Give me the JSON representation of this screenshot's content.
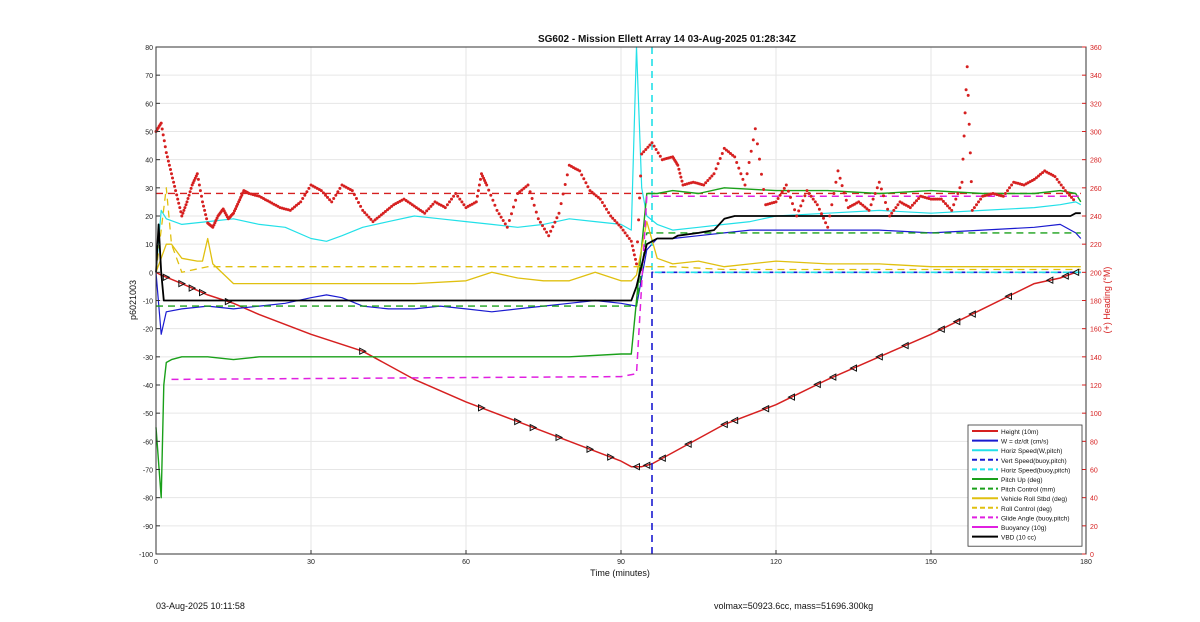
{
  "footer": {
    "timestamp": "03-Aug-2025 10:11:58",
    "info": "volmax=50923.6cc, mass=51696.300kg"
  },
  "chart_data": {
    "type": "line",
    "title": "SG602 - Mission Ellett Array 14 03-Aug-2025 01:28:34Z",
    "xlabel": "Time (minutes)",
    "ylabel": "p6021003",
    "ylabel_right": "(+) Heading (°M)",
    "xlim": [
      0,
      180
    ],
    "ylim": [
      -100,
      80
    ],
    "ylim_right": [
      0,
      360
    ],
    "xticks": [
      0,
      30,
      60,
      90,
      120,
      150,
      180
    ],
    "yticks": [
      -100,
      -90,
      -80,
      -70,
      -60,
      -50,
      -40,
      -30,
      -20,
      -10,
      0,
      10,
      20,
      30,
      40,
      50,
      60,
      70,
      80
    ],
    "yticks_right": [
      0,
      20,
      40,
      60,
      80,
      100,
      120,
      140,
      160,
      180,
      200,
      220,
      240,
      260,
      280,
      300,
      320,
      340,
      360
    ],
    "grid": true,
    "legend_position": "bottom-right",
    "legend": [
      {
        "label": "Height (10m)",
        "color": "#d62020",
        "dash": "solid"
      },
      {
        "label": "W = dz/dt (cm/s)",
        "color": "#1a1ad0",
        "dash": "solid"
      },
      {
        "label": "Horiz Speed(W,pitch)",
        "color": "#22e0e8",
        "dash": "solid"
      },
      {
        "label": "Vert Speed(buoy,pitch)",
        "color": "#1a1ad0",
        "dash": "dashed"
      },
      {
        "label": "Horiz Speed(buoy,pitch)",
        "color": "#22e0e8",
        "dash": "dashed"
      },
      {
        "label": "Pitch Up (deg)",
        "color": "#1aa01a",
        "dash": "solid"
      },
      {
        "label": "Pitch Control (mm)",
        "color": "#1aa01a",
        "dash": "dashed"
      },
      {
        "label": "Vehicle Roll Stbd (deg)",
        "color": "#e0c010",
        "dash": "solid"
      },
      {
        "label": "Roll Control (deg)",
        "color": "#e0c010",
        "dash": "dashed"
      },
      {
        "label": "Glide Angle (buoy,pitch)",
        "color": "#e020e0",
        "dash": "dashed"
      },
      {
        "label": "Buoyancy (10g)",
        "color": "#e020e0",
        "dash": "solid"
      },
      {
        "label": "VBD (10 cc)",
        "color": "#000000",
        "dash": "solid"
      }
    ],
    "series": [
      {
        "key": "height",
        "color": "#d62020",
        "dash": "solid",
        "width": 1.5,
        "x": [
          0,
          1,
          5,
          10,
          15,
          20,
          30,
          40,
          50,
          60,
          70,
          80,
          90,
          92,
          94,
          96,
          100,
          110,
          120,
          130,
          140,
          150,
          160,
          170,
          175,
          178,
          179
        ],
        "y": [
          0,
          -1,
          -4,
          -8,
          -11,
          -15,
          -22,
          -28,
          -38,
          -46,
          -53,
          -60,
          -67,
          -69,
          -69,
          -68,
          -64,
          -54,
          -47,
          -38,
          -30,
          -22,
          -13,
          -4,
          -2,
          0,
          0
        ]
      },
      {
        "key": "w",
        "color": "#1a1ad0",
        "dash": "solid",
        "width": 1.2,
        "x": [
          0,
          1,
          2,
          5,
          10,
          15,
          20,
          25,
          30,
          33,
          36,
          40,
          45,
          50,
          55,
          60,
          65,
          70,
          75,
          80,
          85,
          90,
          93,
          95,
          97,
          100,
          105,
          110,
          115,
          120,
          130,
          140,
          150,
          160,
          170,
          175,
          178,
          179
        ],
        "y": [
          0,
          -22,
          -14,
          -13,
          -12,
          -13,
          -12,
          -11,
          -9,
          -8,
          -9,
          -12,
          -13,
          -13,
          -12,
          -13,
          -14,
          -13,
          -12,
          -11,
          -10,
          -11,
          -12,
          8,
          12,
          12,
          13,
          14,
          15,
          15,
          15,
          15,
          14,
          15,
          16,
          17,
          14,
          12
        ]
      },
      {
        "key": "horiz_speed_w",
        "color": "#22e0e8",
        "dash": "solid",
        "width": 1.2,
        "x": [
          0,
          1,
          2,
          5,
          10,
          15,
          20,
          25,
          30,
          33,
          36,
          40,
          45,
          50,
          55,
          60,
          65,
          70,
          75,
          80,
          85,
          90,
          92,
          93,
          94,
          95,
          97,
          100,
          105,
          110,
          115,
          120,
          130,
          140,
          150,
          160,
          170,
          175,
          178,
          179
        ],
        "y": [
          0,
          22,
          19,
          17,
          18,
          19,
          17,
          16,
          12,
          11,
          13,
          16,
          18,
          20,
          19,
          18,
          17,
          16,
          17,
          19,
          18,
          17,
          15,
          80,
          30,
          20,
          17,
          15,
          16,
          17,
          18,
          20,
          21,
          22,
          21,
          22,
          23,
          24,
          25,
          24
        ]
      },
      {
        "key": "vert_speed_buoy",
        "color": "#1a1ad0",
        "dash": "dashed",
        "width": 1.6,
        "x": [
          96,
          96,
          97,
          179
        ],
        "y": [
          -100,
          0,
          0,
          0
        ]
      },
      {
        "key": "horiz_speed_buoy",
        "color": "#22e0e8",
        "dash": "dashed",
        "width": 1.6,
        "x": [
          96,
          96,
          97,
          179
        ],
        "y": [
          80,
          0,
          0,
          0
        ]
      },
      {
        "key": "pitch_up",
        "color": "#1aa01a",
        "dash": "solid",
        "width": 1.4,
        "x": [
          0,
          1,
          1.5,
          2,
          3,
          5,
          10,
          15,
          20,
          30,
          40,
          50,
          60,
          70,
          80,
          90,
          92,
          93,
          95,
          97,
          100,
          105,
          110,
          120,
          130,
          140,
          150,
          160,
          170,
          175,
          178,
          179
        ],
        "y": [
          -55,
          -80,
          -40,
          -32,
          -31,
          -30,
          -30,
          -31,
          -30,
          -30,
          -30,
          -30,
          -30,
          -30,
          -30,
          -29,
          -29,
          -10,
          28,
          28,
          29,
          28,
          30,
          29,
          29,
          28,
          29,
          28,
          28,
          29,
          28,
          25
        ]
      },
      {
        "key": "pitch_control",
        "color": "#1aa01a",
        "dash": "dashed",
        "width": 1.4,
        "x": [
          0,
          3,
          93,
          95,
          179
        ],
        "y": [
          -12,
          -12,
          -12,
          14,
          14
        ]
      },
      {
        "key": "vehicle_roll",
        "color": "#e0c010",
        "dash": "solid",
        "width": 1.3,
        "x": [
          0,
          2,
          3,
          5,
          8,
          9,
          10,
          11,
          15,
          20,
          30,
          40,
          50,
          60,
          65,
          70,
          75,
          80,
          85,
          90,
          92,
          93,
          95,
          97,
          100,
          105,
          110,
          115,
          120,
          130,
          140,
          150,
          160,
          170,
          175,
          178,
          179
        ],
        "y": [
          0,
          10,
          10,
          5,
          4,
          4,
          12,
          3,
          -4,
          -4,
          -4,
          -4,
          -4,
          -3,
          0,
          -2,
          -3,
          -3,
          0,
          -3,
          -3,
          -1,
          18,
          5,
          3,
          4,
          2,
          3,
          4,
          3,
          3,
          2,
          2,
          2,
          2,
          2,
          2
        ]
      },
      {
        "key": "roll_control",
        "color": "#e0c010",
        "dash": "dashed",
        "width": 1.3,
        "x": [
          0,
          2,
          3,
          5,
          10,
          15,
          20,
          30,
          40,
          50,
          60,
          70,
          80,
          90,
          93,
          95,
          100,
          110,
          120,
          130,
          140,
          150,
          160,
          170,
          179
        ],
        "y": [
          0,
          30,
          10,
          0,
          2,
          2,
          2,
          2,
          2,
          2,
          2,
          2,
          2,
          2,
          2,
          2,
          2,
          1,
          1,
          1,
          1,
          1,
          1,
          1,
          1
        ]
      },
      {
        "key": "glide_angle",
        "color": "#e020e0",
        "dash": "dashed",
        "width": 1.5,
        "x": [
          3,
          90,
          93,
          95,
          100,
          110,
          120,
          130,
          140,
          150,
          160,
          170,
          179
        ],
        "y": [
          -38,
          -37,
          -36,
          27,
          27,
          27,
          27,
          27,
          27,
          27,
          27,
          27,
          27
        ]
      },
      {
        "key": "vbd",
        "color": "#000000",
        "dash": "solid",
        "width": 1.8,
        "x": [
          0,
          0.5,
          1,
          1.5,
          92,
          93,
          95,
          97,
          100,
          101,
          105,
          108,
          110,
          112,
          120,
          130,
          140,
          150,
          160,
          170,
          177,
          178,
          179
        ],
        "y": [
          0,
          17,
          0,
          -10,
          -10,
          -5,
          10,
          12,
          12,
          13,
          14,
          15,
          19,
          20,
          20,
          20,
          20,
          20,
          20,
          20,
          20,
          21,
          21
        ]
      }
    ],
    "reference_lines": [
      {
        "key": "heading_target",
        "axis": "right",
        "y": 256,
        "x": [
          0,
          179
        ],
        "color": "#d62020",
        "dash": "dashed",
        "width": 1.4
      }
    ],
    "heading": {
      "axis": "right",
      "color": "#d62020",
      "x": [
        0,
        1,
        2,
        3,
        4,
        5,
        6,
        7,
        8,
        9,
        10,
        11,
        12,
        13,
        14,
        15,
        16,
        17,
        18,
        20,
        22,
        24,
        26,
        28,
        30,
        32,
        34,
        36,
        38,
        40,
        42,
        44,
        46,
        48,
        50,
        52,
        54,
        56,
        58,
        60,
        62,
        63,
        64,
        66,
        68,
        70,
        72,
        74,
        76,
        78,
        80,
        82,
        84,
        86,
        88,
        90,
        92,
        93,
        94,
        96,
        98,
        100,
        101,
        102,
        104,
        106,
        108,
        110,
        112,
        114,
        116,
        118,
        120,
        122,
        124,
        126,
        128,
        130,
        132,
        134,
        136,
        138,
        140,
        142,
        144,
        146,
        148,
        150,
        152,
        154,
        156,
        157,
        158,
        160,
        162,
        164,
        166,
        168,
        170,
        172,
        174,
        176,
        178
      ],
      "y": [
        300,
        306,
        285,
        270,
        255,
        240,
        250,
        262,
        270,
        250,
        235,
        232,
        240,
        245,
        238,
        242,
        250,
        258,
        256,
        254,
        250,
        246,
        244,
        250,
        262,
        258,
        250,
        262,
        258,
        244,
        236,
        242,
        248,
        252,
        247,
        242,
        250,
        246,
        256,
        246,
        250,
        270,
        262,
        244,
        232,
        256,
        262,
        238,
        226,
        242,
        276,
        272,
        258,
        252,
        240,
        232,
        222,
        206,
        284,
        292,
        280,
        282,
        276,
        262,
        264,
        262,
        270,
        288,
        282,
        262,
        302,
        248,
        250,
        262,
        240,
        258,
        248,
        232,
        272,
        246,
        250,
        244,
        264,
        240,
        250,
        246,
        254,
        252,
        252,
        244,
        264,
        346,
        244,
        254,
        256,
        254,
        264,
        262,
        266,
        272,
        268,
        258,
        250
      ]
    },
    "markers": {
      "color": "#111111",
      "x": [
        2,
        5,
        7,
        9,
        14,
        40,
        63,
        70,
        73,
        78,
        84,
        88,
        93,
        95,
        98,
        103,
        110,
        112,
        118,
        123,
        128,
        131,
        135,
        140,
        145,
        152,
        155,
        158,
        165,
        173,
        176,
        178
      ]
    }
  }
}
